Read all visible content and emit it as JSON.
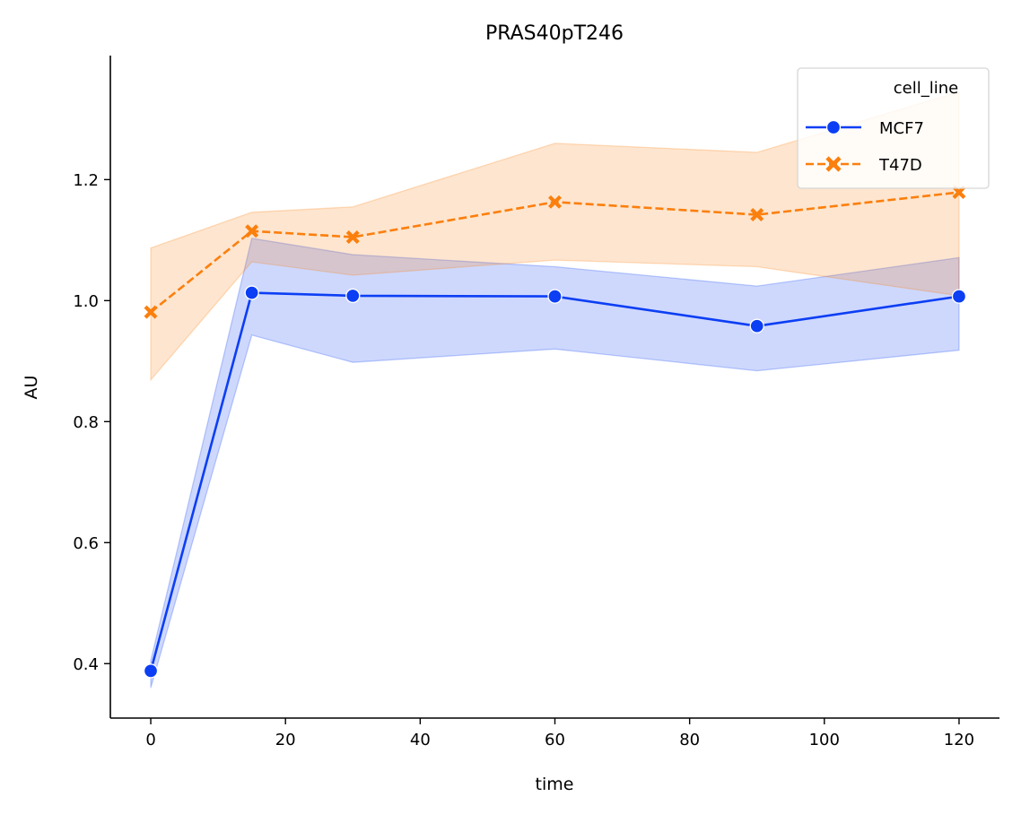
{
  "chart_data": {
    "type": "line",
    "title": "PRAS40pT246",
    "xlabel": "time",
    "ylabel": "AU",
    "x": [
      0,
      15,
      30,
      60,
      90,
      120
    ],
    "xlim": [
      -6,
      126
    ],
    "ylim": [
      0.31,
      1.405
    ],
    "xticks": [
      0,
      20,
      40,
      60,
      80,
      100,
      120
    ],
    "yticks": [
      0.4,
      0.6,
      0.8,
      1.0,
      1.2
    ],
    "ytick_labels": [
      "0.4",
      "0.6",
      "0.8",
      "1.0",
      "1.2"
    ],
    "grid": false,
    "legend": {
      "title": "cell_line",
      "placement": "top-right"
    },
    "series": [
      {
        "name": "MCF7",
        "color": "#0c3ef4",
        "marker": "circle",
        "linestyle": "solid",
        "values": [
          0.388,
          1.013,
          1.008,
          1.007,
          0.958,
          1.007
        ],
        "ci_low": [
          0.36,
          0.943,
          0.898,
          0.92,
          0.884,
          0.918
        ],
        "ci_high": [
          0.405,
          1.103,
          1.076,
          1.056,
          1.024,
          1.071
        ]
      },
      {
        "name": "T47D",
        "color": "#fb7f0d",
        "marker": "x",
        "linestyle": "dashed",
        "values": [
          0.981,
          1.115,
          1.105,
          1.163,
          1.142,
          1.179
        ],
        "ci_low": [
          0.869,
          1.064,
          1.042,
          1.067,
          1.056,
          1.008
        ],
        "ci_high": [
          1.087,
          1.146,
          1.155,
          1.26,
          1.245,
          1.345
        ]
      }
    ]
  }
}
